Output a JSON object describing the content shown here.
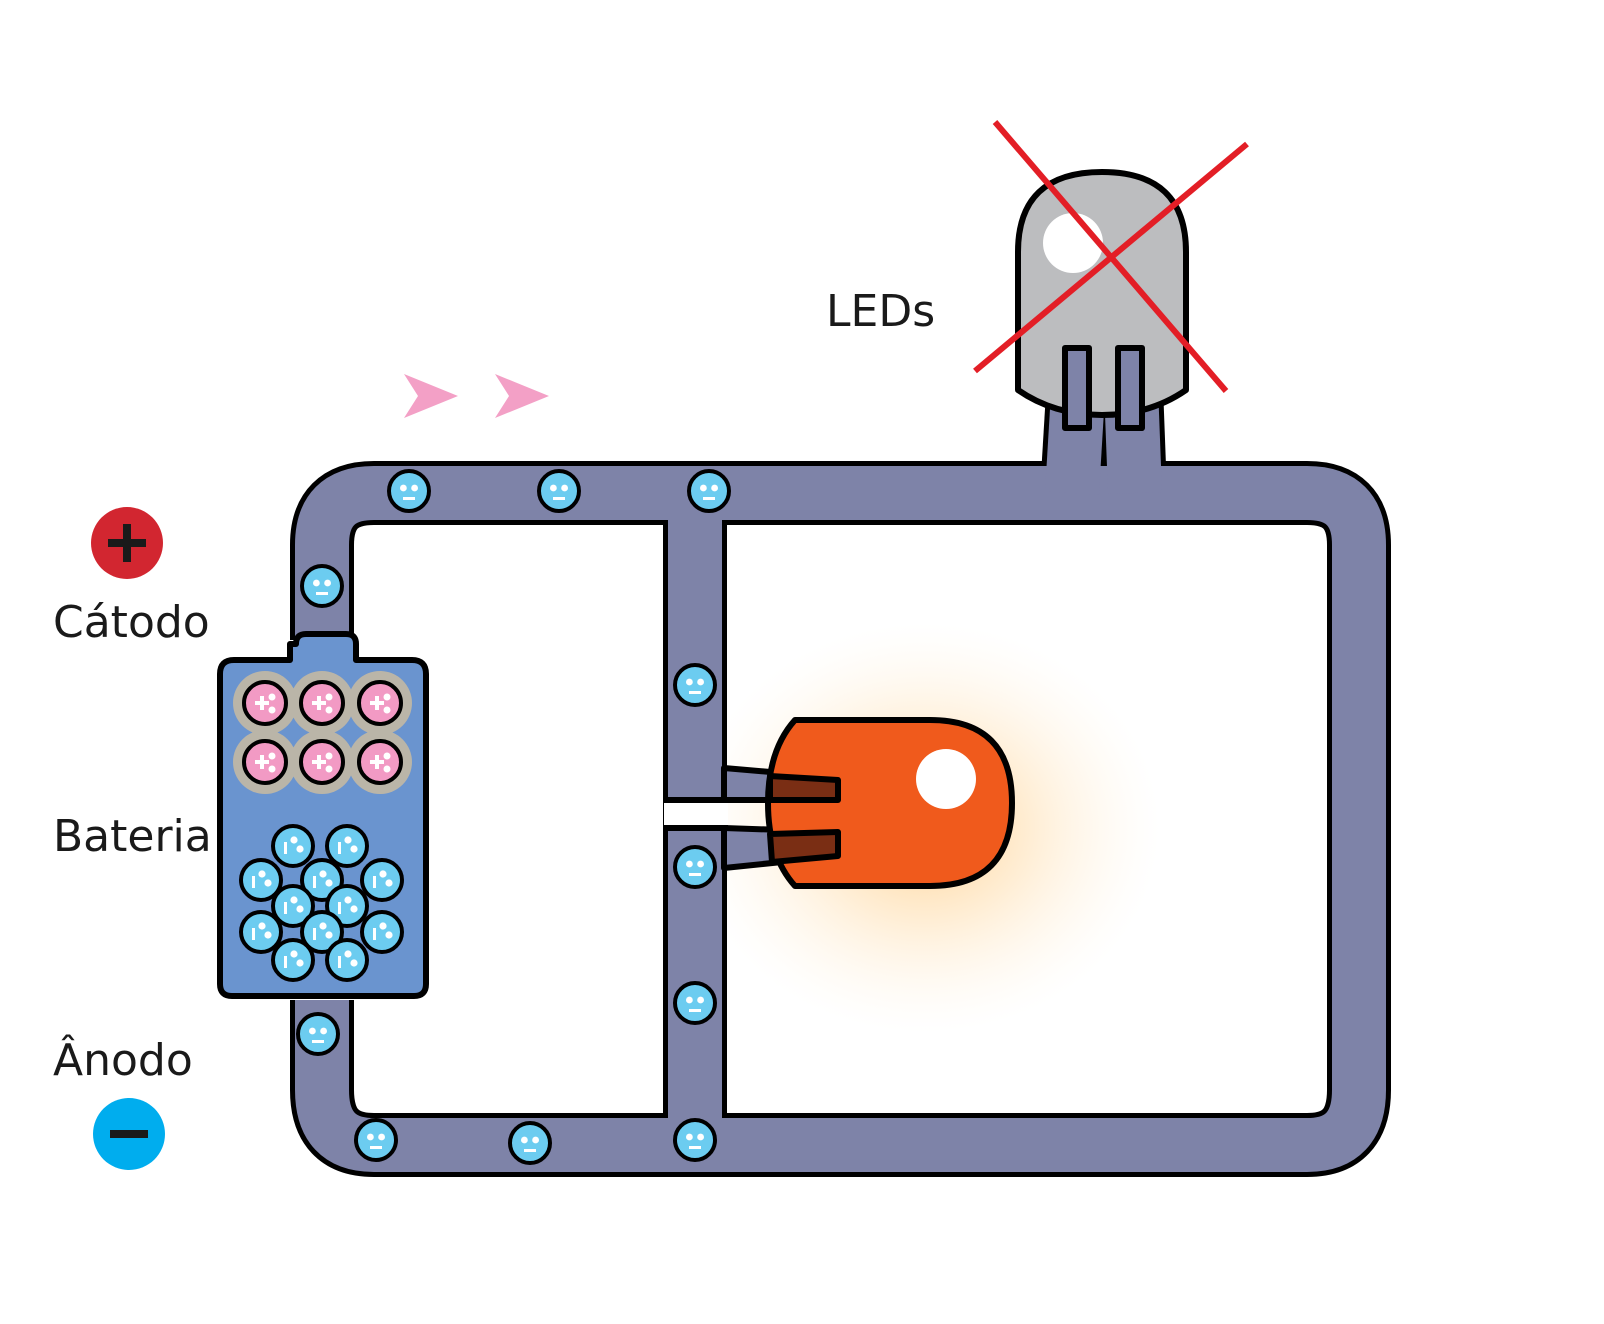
{
  "labels": {
    "leds": "LEDs",
    "cathode": "Cátodo",
    "battery": "Bateria",
    "anode": "Ânodo"
  },
  "symbols": {
    "plus": "+",
    "minus": "−"
  },
  "colors": {
    "wire": "#7e83a8",
    "battery": "#6a94cf",
    "electron": "#6cccf0",
    "hole_positive": "#f29ac4",
    "hole_ring": "#bab5a8",
    "led_on": "#f05a1c",
    "led_off": "#bcbdbf",
    "cross": "#e31e26",
    "cathode_badge": "#d22630",
    "anode_badge": "#00adee",
    "flow_arrow": "#f3a0c6"
  },
  "components": {
    "led_on": "lit-led",
    "led_off": "unlit-led-crossed-out",
    "battery": "battery-with-charges"
  },
  "icons": [
    "plus-icon",
    "minus-icon",
    "flow-arrow-icon",
    "electron-icon",
    "positive-charge-icon",
    "cross-icon"
  ]
}
